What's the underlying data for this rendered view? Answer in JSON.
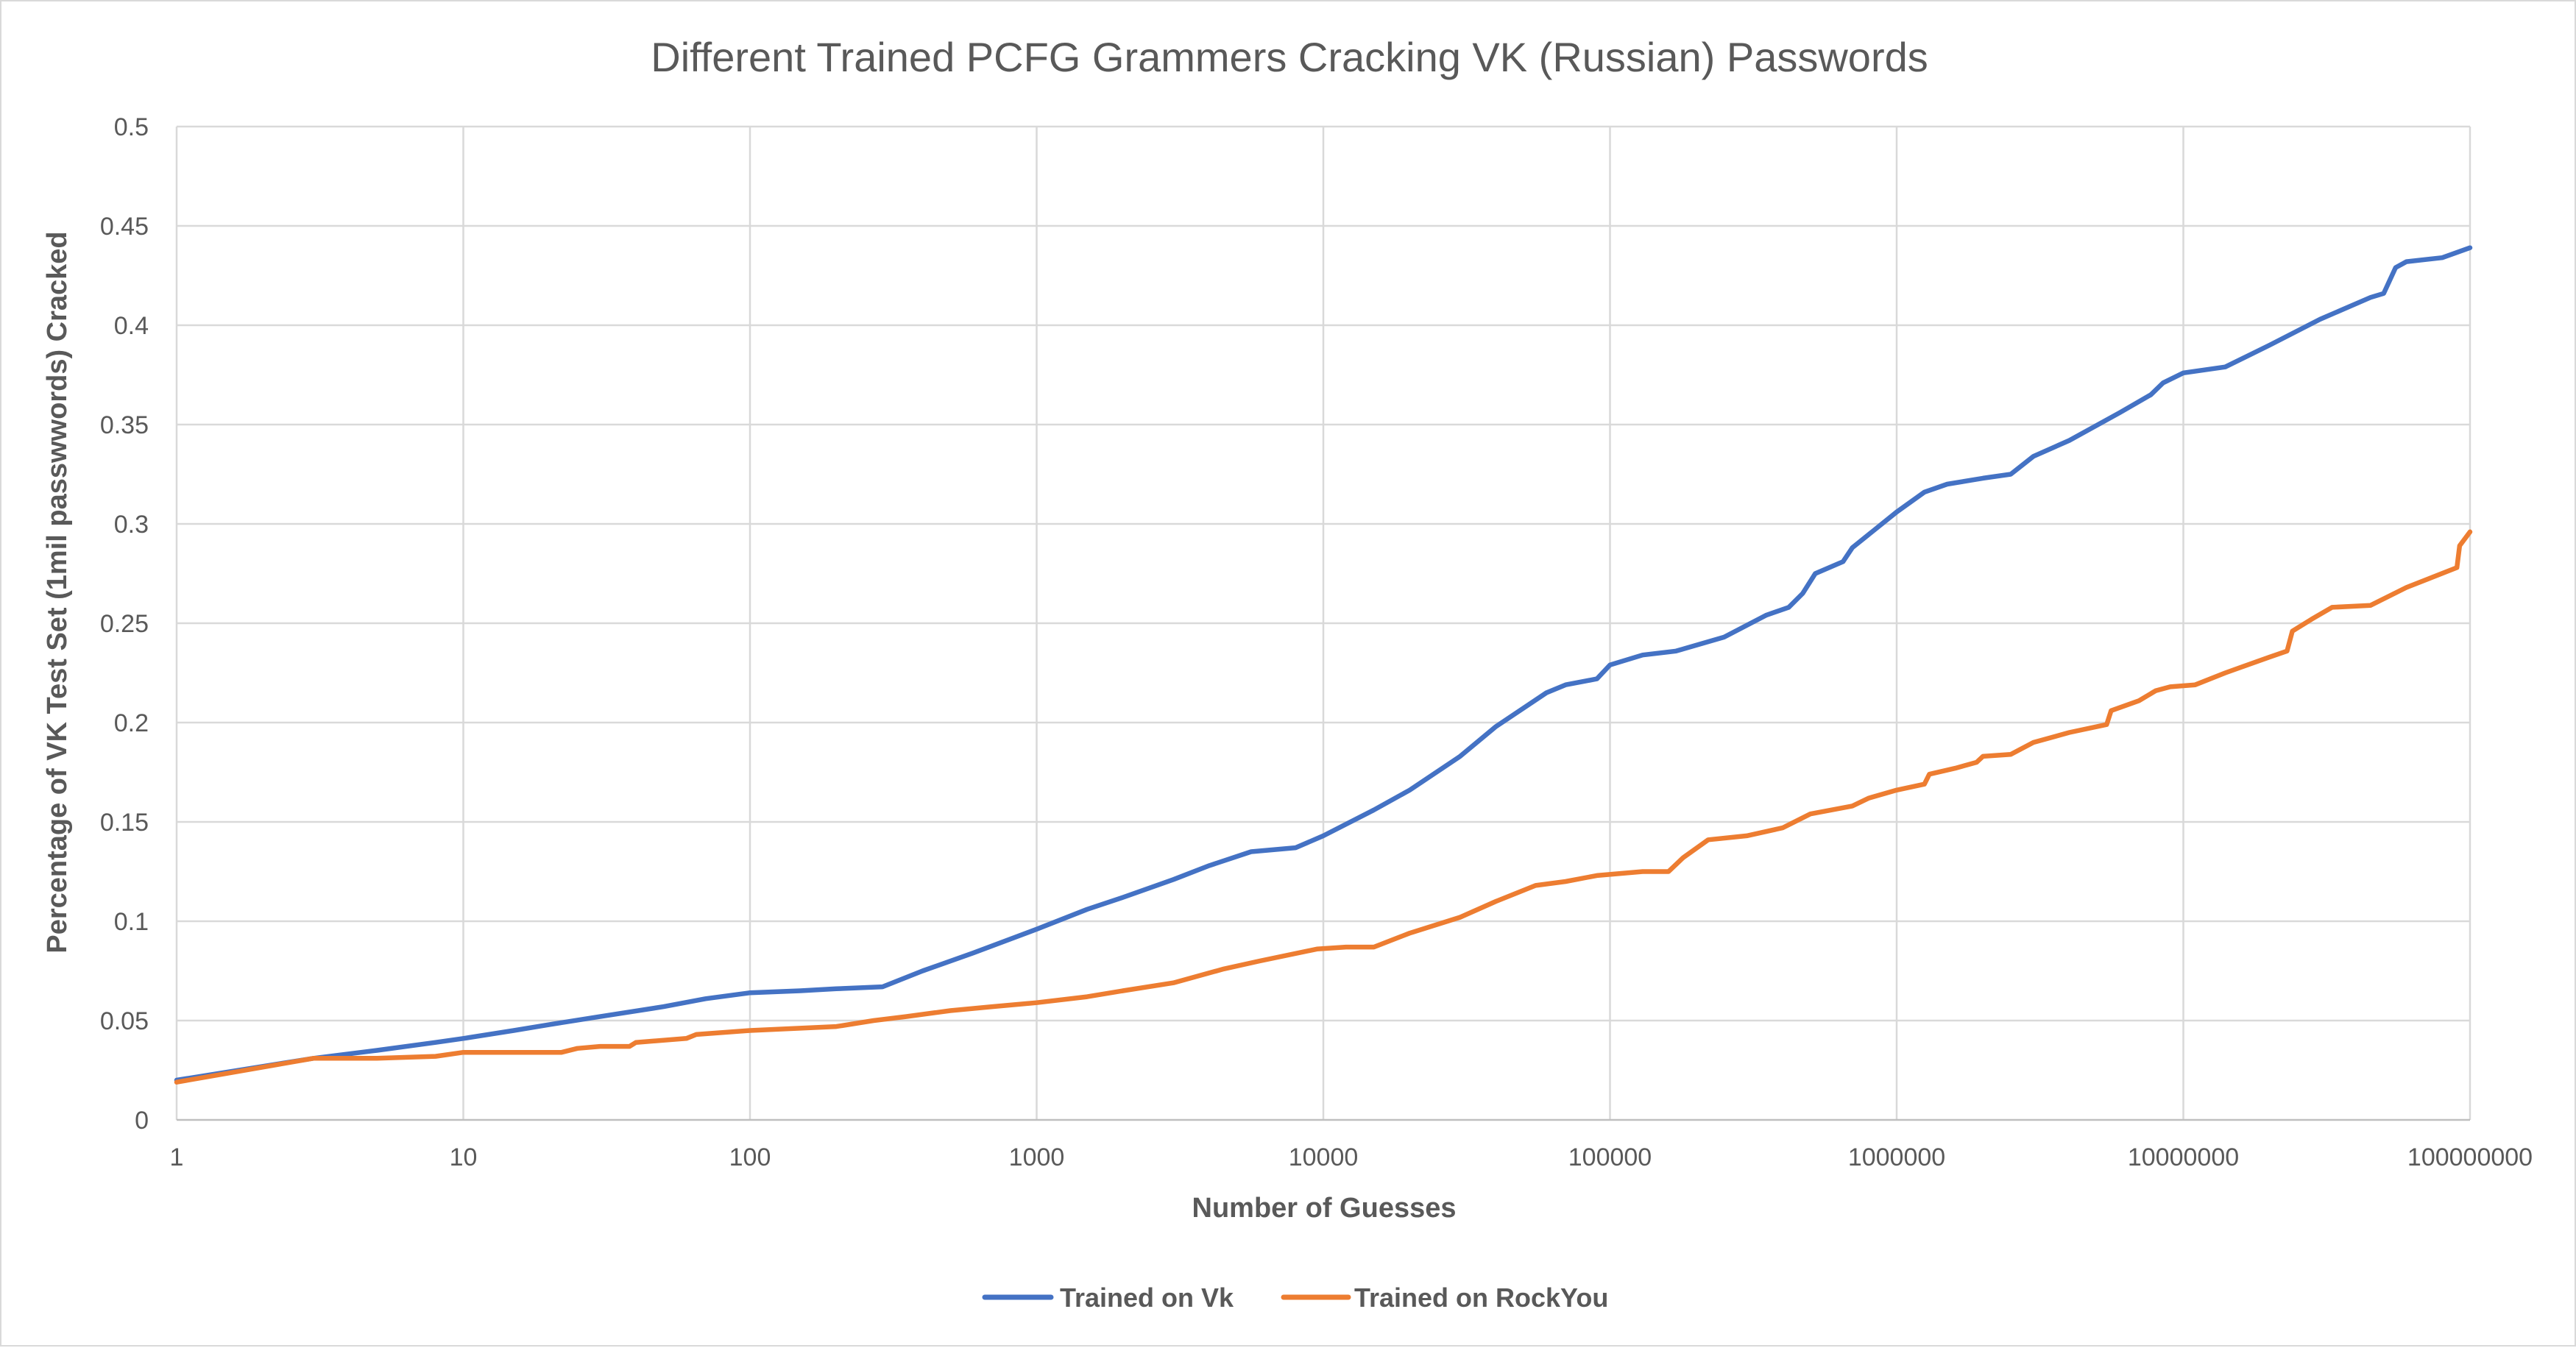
{
  "chart_data": {
    "type": "line",
    "title": "Different Trained PCFG Grammers Cracking VK (Russian) Passwords",
    "xlabel": "Number of Guesses",
    "ylabel": "Percentage of VK Test Set (1mil passwwords) Cracked",
    "x_scale": "log",
    "xlim": [
      1,
      100000000
    ],
    "ylim": [
      0,
      0.5
    ],
    "x_ticks": [
      1,
      10,
      100,
      1000,
      10000,
      100000,
      1000000,
      10000000,
      100000000
    ],
    "x_tick_labels": [
      "1",
      "10",
      "100",
      "1000",
      "10000",
      "100000",
      "1000000",
      "10000000",
      "100000000"
    ],
    "y_ticks": [
      0,
      0.05,
      0.1,
      0.15,
      0.2,
      0.25,
      0.3,
      0.35,
      0.4,
      0.45,
      0.5
    ],
    "y_tick_labels": [
      "0",
      "0.05",
      "0.1",
      "0.15",
      "0.2",
      "0.25",
      "0.3",
      "0.35",
      "0.4",
      "0.45",
      "0.5"
    ],
    "grid": true,
    "legend_position": "bottom",
    "series": [
      {
        "name": "Trained on Vk",
        "color": "#4472c4",
        "points": [
          [
            1,
            0.02
          ],
          [
            3,
            0.031
          ],
          [
            5,
            0.035
          ],
          [
            8,
            0.039
          ],
          [
            10,
            0.041
          ],
          [
            15,
            0.045
          ],
          [
            20,
            0.048
          ],
          [
            30,
            0.052
          ],
          [
            50,
            0.057
          ],
          [
            70,
            0.061
          ],
          [
            100,
            0.064
          ],
          [
            150,
            0.065
          ],
          [
            200,
            0.066
          ],
          [
            290,
            0.067
          ],
          [
            400,
            0.075
          ],
          [
            600,
            0.084
          ],
          [
            1000,
            0.096
          ],
          [
            1500,
            0.106
          ],
          [
            2000,
            0.112
          ],
          [
            3000,
            0.121
          ],
          [
            4000,
            0.128
          ],
          [
            5600,
            0.135
          ],
          [
            8000,
            0.137
          ],
          [
            10000,
            0.143
          ],
          [
            15000,
            0.156
          ],
          [
            20000,
            0.166
          ],
          [
            30000,
            0.183
          ],
          [
            40000,
            0.198
          ],
          [
            60000,
            0.215
          ],
          [
            70000,
            0.219
          ],
          [
            90000,
            0.222
          ],
          [
            100000,
            0.229
          ],
          [
            130000,
            0.234
          ],
          [
            170000,
            0.236
          ],
          [
            250000,
            0.243
          ],
          [
            350000,
            0.254
          ],
          [
            420000,
            0.258
          ],
          [
            470000,
            0.265
          ],
          [
            520000,
            0.275
          ],
          [
            650000,
            0.281
          ],
          [
            700000,
            0.288
          ],
          [
            1000000,
            0.306
          ],
          [
            1250000,
            0.316
          ],
          [
            1500000,
            0.32
          ],
          [
            2000000,
            0.323
          ],
          [
            2500000,
            0.325
          ],
          [
            3000000,
            0.334
          ],
          [
            4000000,
            0.342
          ],
          [
            6000000,
            0.356
          ],
          [
            7700000,
            0.365
          ],
          [
            8500000,
            0.371
          ],
          [
            10000000,
            0.376
          ],
          [
            14000000,
            0.379
          ],
          [
            20000000,
            0.39
          ],
          [
            30000000,
            0.403
          ],
          [
            45000000,
            0.414
          ],
          [
            50000000,
            0.416
          ],
          [
            55000000,
            0.429
          ],
          [
            60000000,
            0.432
          ],
          [
            80000000,
            0.434
          ],
          [
            100000000,
            0.439
          ]
        ]
      },
      {
        "name": "Trained on RockYou",
        "color": "#ed7d31",
        "points": [
          [
            1,
            0.019
          ],
          [
            3,
            0.031
          ],
          [
            5,
            0.031
          ],
          [
            8,
            0.032
          ],
          [
            10,
            0.034
          ],
          [
            15,
            0.034
          ],
          [
            22,
            0.034
          ],
          [
            25,
            0.036
          ],
          [
            30,
            0.037
          ],
          [
            38,
            0.037
          ],
          [
            40,
            0.039
          ],
          [
            60,
            0.041
          ],
          [
            65,
            0.043
          ],
          [
            100,
            0.045
          ],
          [
            200,
            0.047
          ],
          [
            270,
            0.05
          ],
          [
            350,
            0.052
          ],
          [
            500,
            0.055
          ],
          [
            700,
            0.057
          ],
          [
            1000,
            0.059
          ],
          [
            1500,
            0.062
          ],
          [
            2000,
            0.065
          ],
          [
            3000,
            0.069
          ],
          [
            4500,
            0.076
          ],
          [
            6000,
            0.08
          ],
          [
            9500,
            0.086
          ],
          [
            12000,
            0.087
          ],
          [
            15000,
            0.087
          ],
          [
            20000,
            0.094
          ],
          [
            30000,
            0.102
          ],
          [
            40000,
            0.11
          ],
          [
            55000,
            0.118
          ],
          [
            70000,
            0.12
          ],
          [
            90000,
            0.123
          ],
          [
            130000,
            0.125
          ],
          [
            160000,
            0.125
          ],
          [
            180000,
            0.132
          ],
          [
            220000,
            0.141
          ],
          [
            300000,
            0.143
          ],
          [
            400000,
            0.147
          ],
          [
            500000,
            0.154
          ],
          [
            700000,
            0.158
          ],
          [
            800000,
            0.162
          ],
          [
            1000000,
            0.166
          ],
          [
            1250000,
            0.169
          ],
          [
            1300000,
            0.174
          ],
          [
            1600000,
            0.177
          ],
          [
            1900000,
            0.18
          ],
          [
            2000000,
            0.183
          ],
          [
            2500000,
            0.184
          ],
          [
            3000000,
            0.19
          ],
          [
            4000000,
            0.195
          ],
          [
            5400000,
            0.199
          ],
          [
            5600000,
            0.206
          ],
          [
            7000000,
            0.211
          ],
          [
            8000000,
            0.216
          ],
          [
            9000000,
            0.218
          ],
          [
            11000000,
            0.219
          ],
          [
            14000000,
            0.225
          ],
          [
            20000000,
            0.233
          ],
          [
            23000000,
            0.236
          ],
          [
            24000000,
            0.246
          ],
          [
            28000000,
            0.252
          ],
          [
            33000000,
            0.258
          ],
          [
            45000000,
            0.259
          ],
          [
            60000000,
            0.268
          ],
          [
            90000000,
            0.278
          ],
          [
            92000000,
            0.289
          ],
          [
            100000000,
            0.296
          ]
        ]
      }
    ]
  }
}
